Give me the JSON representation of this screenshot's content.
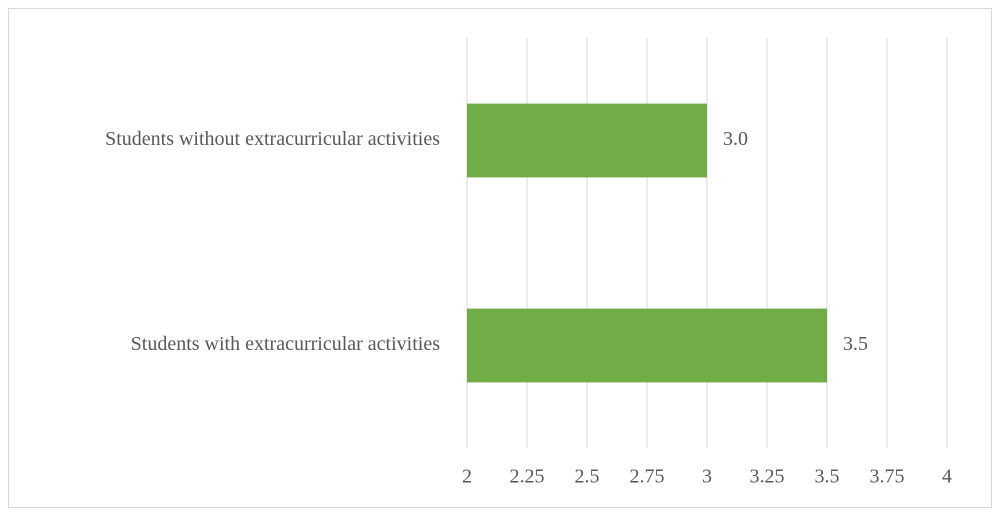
{
  "chart_data": {
    "type": "hbar",
    "categories": [
      "Students without extracurricular activities",
      "Students with extracurricular activities"
    ],
    "values": [
      3.0,
      3.5
    ],
    "value_labels": [
      "3.0",
      "3.5"
    ],
    "color": "#70ad47",
    "xlim": [
      2,
      4
    ],
    "xticks": [
      2,
      2.25,
      2.5,
      2.75,
      3,
      3.25,
      3.5,
      3.75,
      4
    ],
    "grid": true
  }
}
